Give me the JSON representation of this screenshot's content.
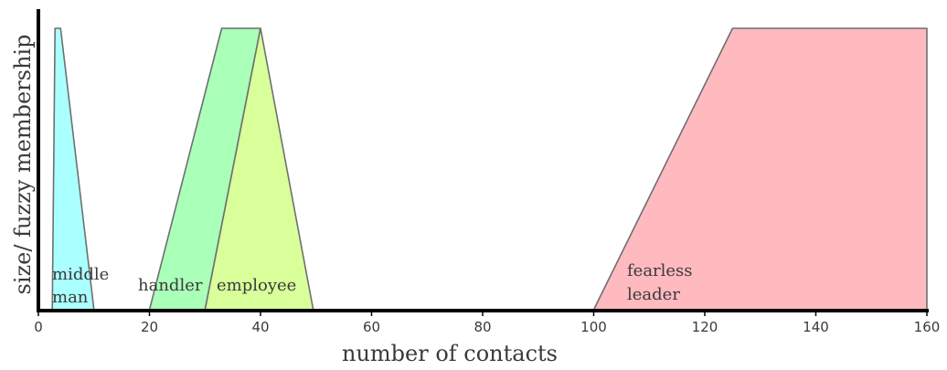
{
  "chart_data": {
    "type": "area",
    "xlabel": "number of contacts",
    "ylabel": "size/ fuzzy membership",
    "xlim": [
      0,
      160
    ],
    "ylim": [
      0,
      1
    ],
    "xticks": [
      0,
      20,
      40,
      60,
      80,
      100,
      120,
      140,
      160
    ],
    "grid": false,
    "series": [
      {
        "name": "middle man",
        "label_lines": [
          "middle",
          "man"
        ],
        "color": "#aaffff",
        "points": [
          [
            2.5,
            0
          ],
          [
            3,
            1
          ],
          [
            4,
            1
          ],
          [
            10,
            0
          ]
        ]
      },
      {
        "name": "handler",
        "label_lines": [
          "handler"
        ],
        "color": "#aaffb9",
        "points": [
          [
            20,
            0
          ],
          [
            33,
            1
          ],
          [
            40,
            1
          ],
          [
            30,
            0
          ]
        ]
      },
      {
        "name": "employee",
        "label_lines": [
          "employee"
        ],
        "color": "#d8ff9a",
        "points": [
          [
            30,
            0
          ],
          [
            40,
            1
          ],
          [
            49.5,
            0
          ]
        ]
      },
      {
        "name": "fearless leader",
        "label_lines": [
          "fearless",
          "leader"
        ],
        "color": "#ffbac0",
        "points": [
          [
            100,
            0
          ],
          [
            125,
            1
          ],
          [
            160,
            1
          ],
          [
            160,
            0
          ]
        ]
      }
    ]
  }
}
